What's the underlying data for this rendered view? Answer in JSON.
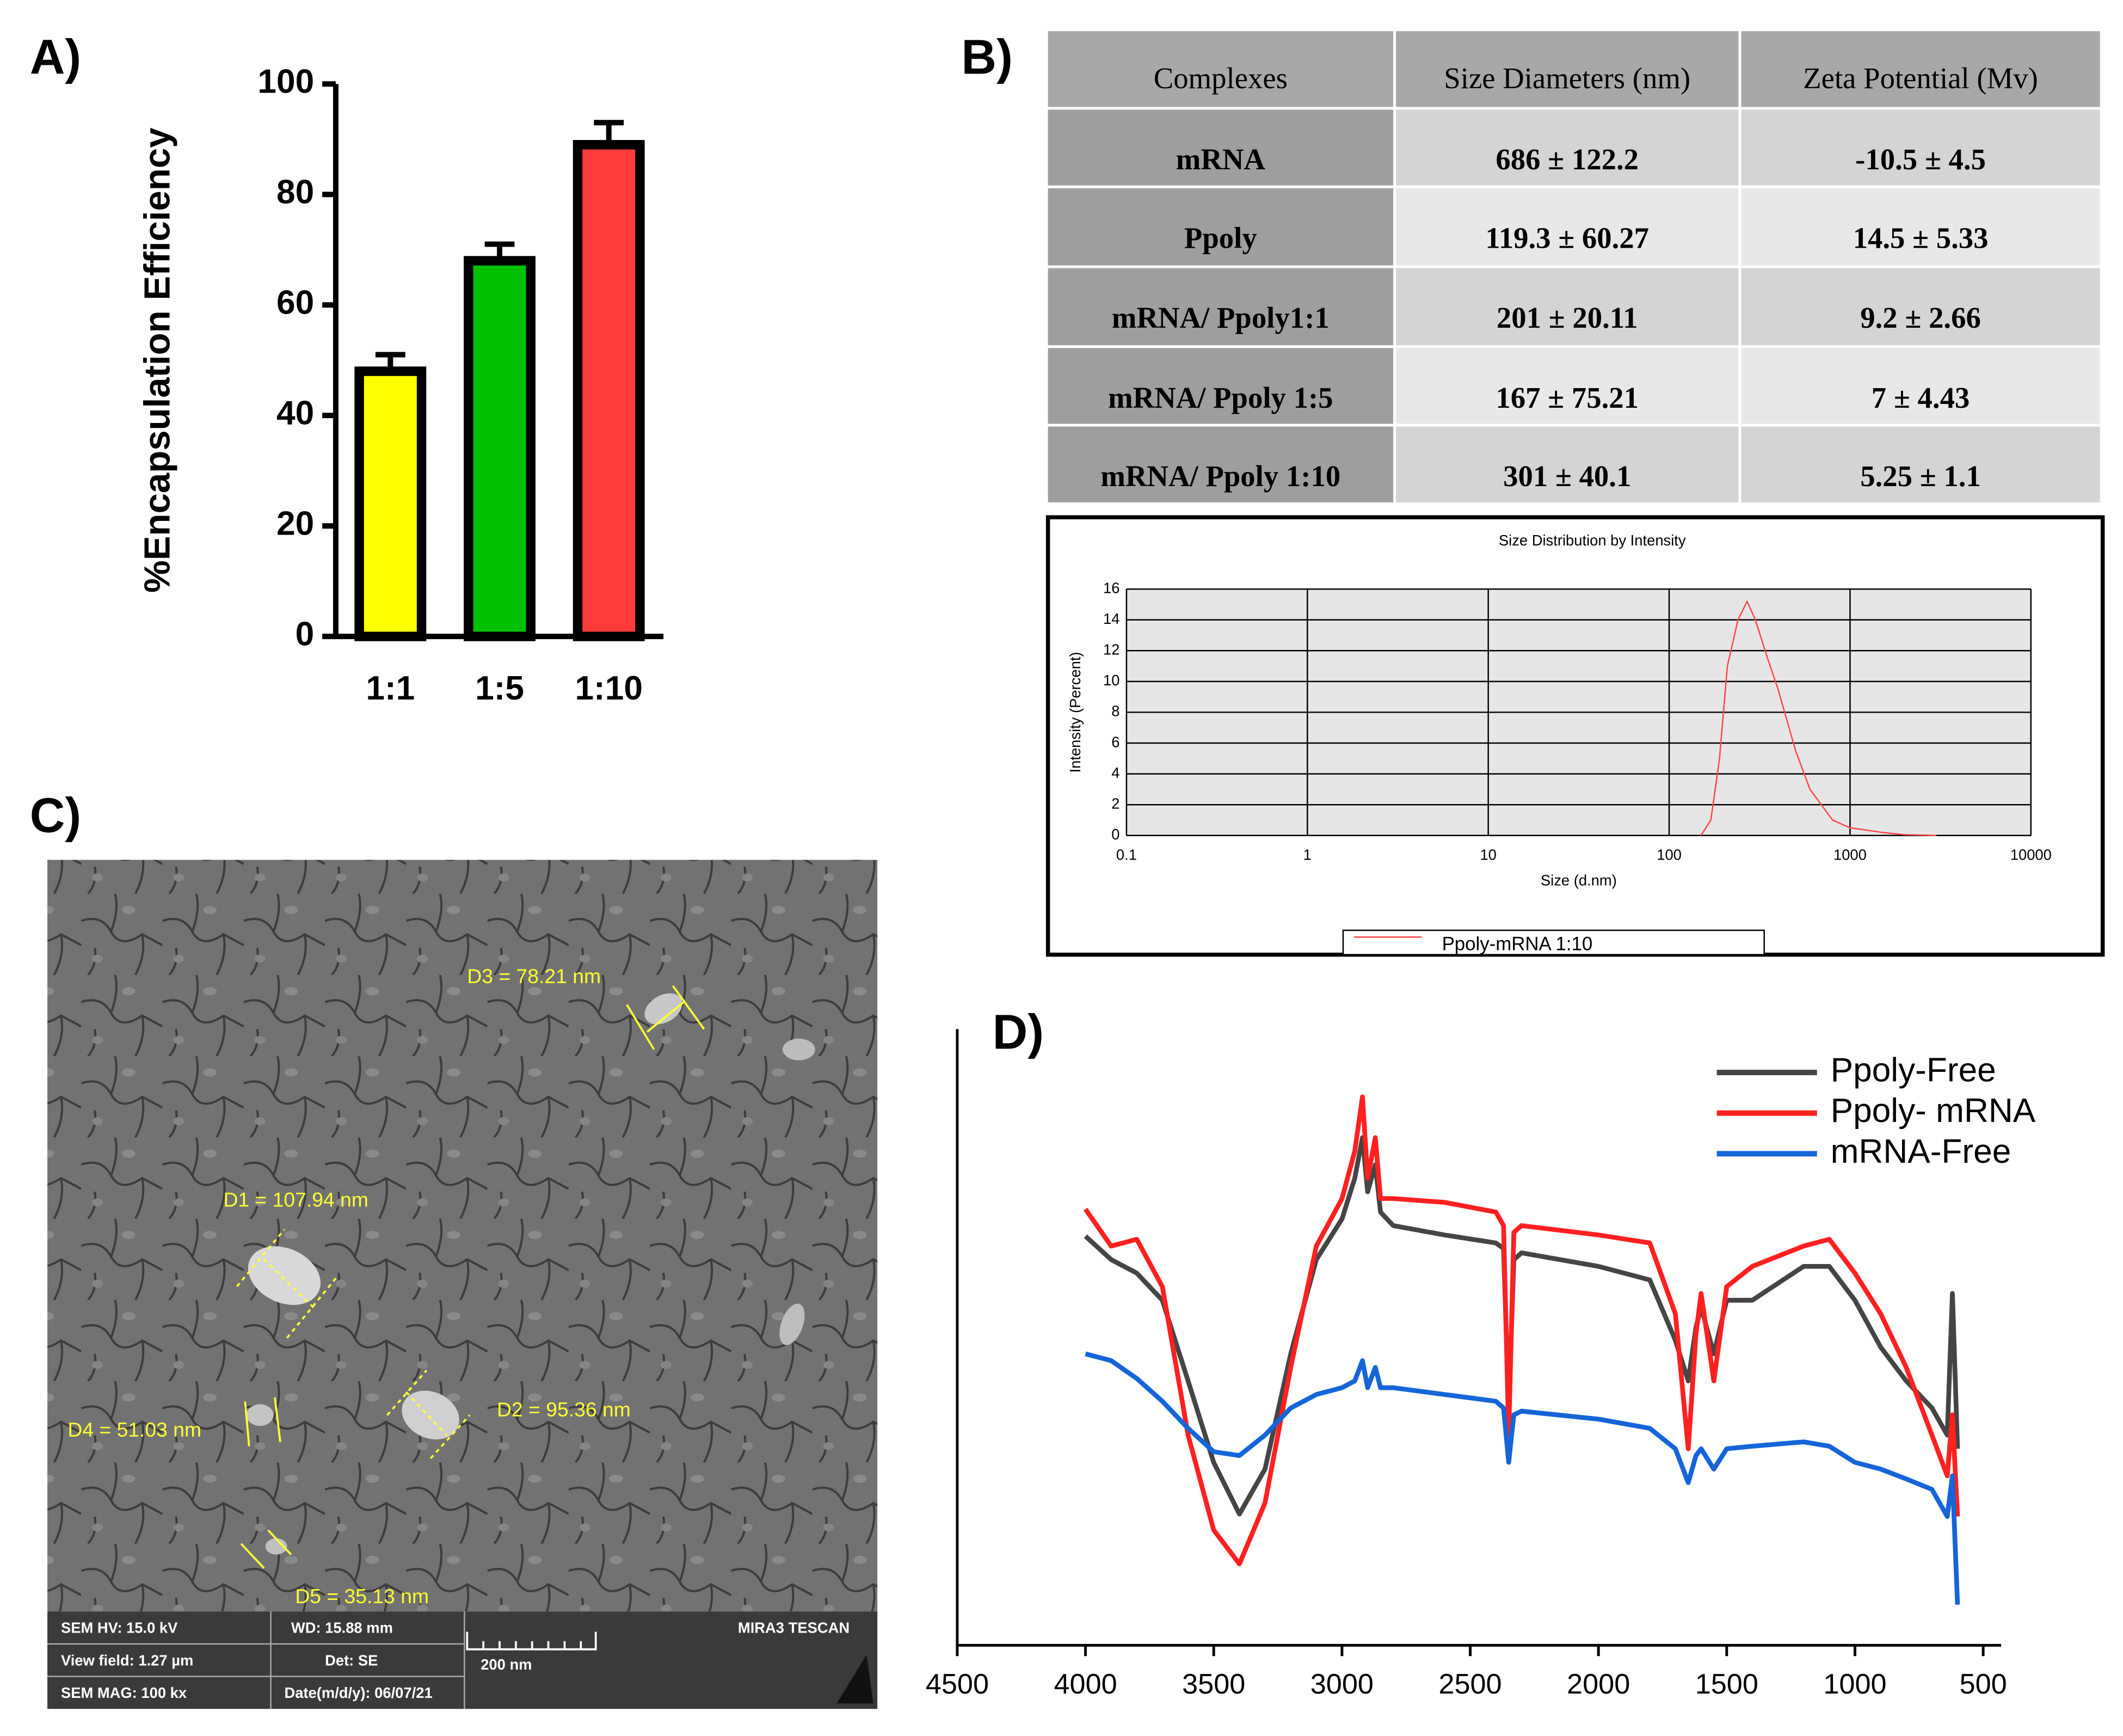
{
  "panel_labels": [
    "A)",
    "B)",
    "C)",
    "D)"
  ],
  "chart_data": [
    {
      "type": "bar",
      "ylabel": "%Encapsulation Efficiency",
      "categories": [
        "1:1",
        "1:5",
        "1:10"
      ],
      "values": [
        48,
        68,
        89
      ],
      "errors": [
        3,
        3,
        4
      ],
      "colors": [
        "#ffff00",
        "#00c000",
        "#ff3b3b"
      ],
      "ylim": [
        0,
        100
      ],
      "yticks": [
        0,
        20,
        40,
        60,
        80,
        100
      ]
    },
    {
      "type": "line",
      "title": "Size Distribution by Intensity",
      "xlabel": "Size (d.nm)",
      "ylabel": "Intensity (Percent)",
      "xscale": "log",
      "grid": true,
      "legend": "bottom",
      "xlim": [
        0.1,
        10000
      ],
      "xticks": [
        0.1,
        1,
        10,
        100,
        1000,
        10000
      ],
      "ylim": [
        0,
        16
      ],
      "yticks": [
        0,
        2,
        4,
        6,
        8,
        10,
        12,
        14,
        16
      ],
      "x": [
        150,
        170,
        190,
        210,
        240,
        270,
        300,
        350,
        400,
        500,
        600,
        800,
        1000,
        1500,
        2000,
        3000
      ],
      "series": [
        {
          "name": "Ppoly-mRNA 1:10",
          "color": "#ff4444",
          "values": [
            0,
            1,
            5,
            11,
            14,
            15.2,
            14,
            11.5,
            9.5,
            5.5,
            3,
            1,
            0.5,
            0.2,
            0.05,
            0
          ]
        }
      ]
    },
    {
      "type": "line",
      "legend": "upper right",
      "xlim": [
        4500,
        430
      ],
      "xticks": [
        4500,
        4000,
        3500,
        3000,
        2500,
        2000,
        1500,
        1000,
        500
      ],
      "ylim": [
        0,
        100
      ],
      "x": [
        4000,
        3900,
        3800,
        3700,
        3600,
        3500,
        3400,
        3300,
        3200,
        3100,
        3000,
        2950,
        2920,
        2900,
        2870,
        2850,
        2800,
        2600,
        2400,
        2370,
        2350,
        2330,
        2300,
        2000,
        1800,
        1700,
        1650,
        1620,
        1600,
        1550,
        1500,
        1400,
        1200,
        1100,
        1000,
        900,
        800,
        700,
        640,
        620,
        600
      ],
      "series": [
        {
          "name": "Ppoly-Free",
          "color": "#454545",
          "values": [
            66.4,
            62.6,
            60.4,
            56,
            42.9,
            29.7,
            21.3,
            28.6,
            47.3,
            62.6,
            69.2,
            75.8,
            82.4,
            73.6,
            78,
            70.3,
            68.1,
            66.6,
            65.3,
            64.4,
            38.5,
            62.6,
            63.7,
            61.5,
            59.3,
            49.5,
            42.9,
            51.6,
            54.9,
            47.3,
            56,
            56,
            61.5,
            61.5,
            56,
            48.4,
            42.9,
            38.5,
            34.1,
            57.1,
            31.9
          ]
        },
        {
          "name": "Ppoly- mRNA",
          "color": "#ff2020",
          "values": [
            70.8,
            64.8,
            65.9,
            58.2,
            34.1,
            18.7,
            13.2,
            23.1,
            45.1,
            64.8,
            72.5,
            80.2,
            89,
            75.8,
            82.4,
            72.5,
            72.5,
            71.9,
            70.3,
            68.1,
            34.1,
            67,
            68.1,
            66.6,
            65.3,
            53.8,
            31.9,
            50.5,
            57.1,
            42.9,
            58.2,
            61.5,
            64.8,
            65.9,
            60.4,
            53.8,
            45.1,
            34.1,
            27.5,
            37.4,
            20.9
          ]
        },
        {
          "name": "mRNA-Free",
          "color": "#1565d8",
          "values": [
            47.3,
            46.2,
            43.3,
            39.6,
            35.2,
            31.4,
            30.8,
            34.1,
            38.5,
            40.7,
            41.8,
            42.9,
            46.2,
            41.8,
            45.1,
            41.8,
            41.8,
            40.7,
            39.6,
            38.5,
            29.7,
            37.4,
            38,
            36.7,
            35.2,
            31.9,
            26.4,
            30.8,
            31.9,
            28.6,
            31.9,
            32.3,
            33,
            32.3,
            29.7,
            28.6,
            27,
            25.3,
            20.9,
            27.5,
            6.6
          ]
        }
      ]
    }
  ],
  "table": {
    "header": [
      "Complexes",
      "Size Diameters (nm)",
      "Zeta Potential (Mv)"
    ],
    "rows": [
      [
        "mRNA",
        "686 ± 122.2",
        "-10.5 ± 4.5"
      ],
      [
        "Ppoly",
        "119.3 ± 60.27",
        "14.5 ± 5.33"
      ],
      [
        "mRNA/ Ppoly1:1",
        "201 ± 20.11",
        "9.2 ± 2.66"
      ],
      [
        "mRNA/ Ppoly 1:5",
        "167 ± 75.21",
        "7 ± 4.43"
      ],
      [
        "mRNA/ Ppoly 1:10",
        "301 ± 40.1",
        "5.25 ± 1.1"
      ]
    ]
  },
  "sem": {
    "measurements": [
      "D3 = 78.21 nm",
      "D1 = 107.94 nm",
      "D2 = 95.36 nm",
      "D4 = 51.03 nm",
      "D5 = 35.13 nm"
    ],
    "info": [
      "SEM HV: 15.0 kV",
      "WD: 15.88 mm",
      "MIRA3 TESCAN",
      "View field: 1.27 µm",
      "Det: SE",
      "200 nm",
      "SEM MAG: 100 kx",
      "Date(m/d/y): 06/07/21"
    ]
  }
}
